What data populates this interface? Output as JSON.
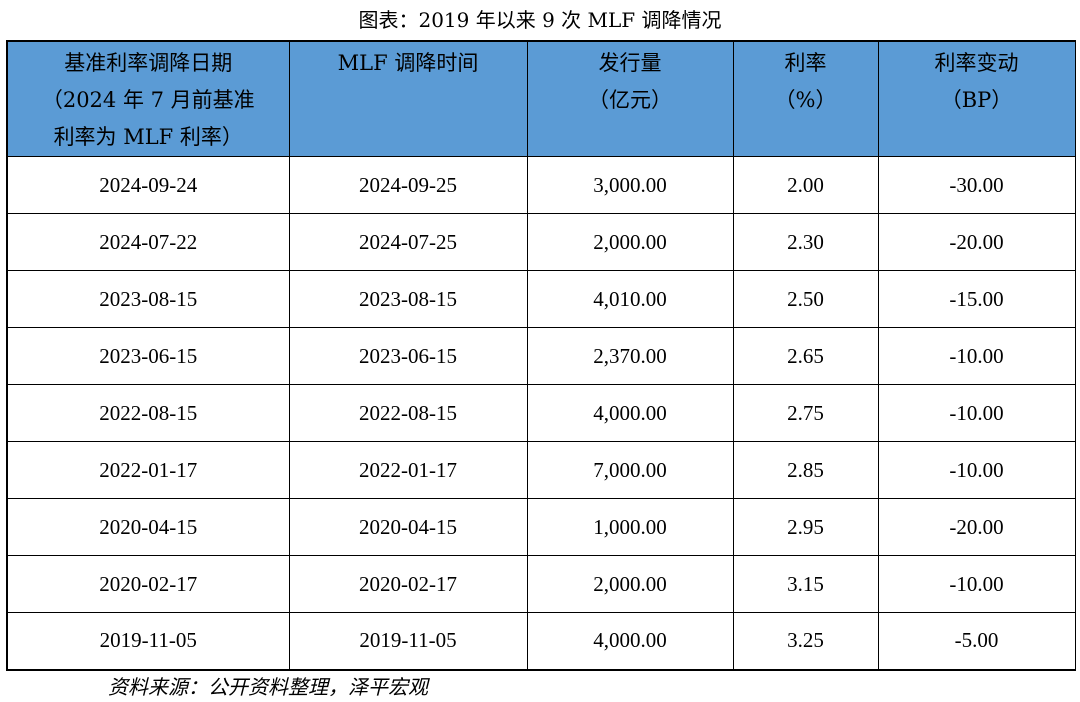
{
  "caption": "图表：2019 年以来 9 次 MLF 调降情况",
  "headers": [
    [
      "基准利率调降日期",
      "（2024 年 7 月前基准",
      "利率为 MLF 利率）"
    ],
    [
      "MLF 调降时间"
    ],
    [
      "发行量",
      "（亿元）"
    ],
    [
      "利率",
      "（%）"
    ],
    [
      "利率变动",
      "（BP）"
    ]
  ],
  "rows": [
    [
      "2024-09-24",
      "2024-09-25",
      "3,000.00",
      "2.00",
      "-30.00"
    ],
    [
      "2024-07-22",
      "2024-07-25",
      "2,000.00",
      "2.30",
      "-20.00"
    ],
    [
      "2023-08-15",
      "2023-08-15",
      "4,010.00",
      "2.50",
      "-15.00"
    ],
    [
      "2023-06-15",
      "2023-06-15",
      "2,370.00",
      "2.65",
      "-10.00"
    ],
    [
      "2022-08-15",
      "2022-08-15",
      "4,000.00",
      "2.75",
      "-10.00"
    ],
    [
      "2022-01-17",
      "2022-01-17",
      "7,000.00",
      "2.85",
      "-10.00"
    ],
    [
      "2020-04-15",
      "2020-04-15",
      "1,000.00",
      "2.95",
      "-20.00"
    ],
    [
      "2020-02-17",
      "2020-02-17",
      "2,000.00",
      "3.15",
      "-10.00"
    ],
    [
      "2019-11-05",
      "2019-11-05",
      "4,000.00",
      "3.25",
      "-5.00"
    ]
  ],
  "source": "资料来源：公开资料整理，泽平宏观",
  "colors": {
    "header_bg": "#5b9bd5",
    "border": "#000000"
  },
  "chart_data": {
    "type": "table",
    "columns": [
      "基准利率调降日期（2024 年 7 月前基准利率为 MLF 利率）",
      "MLF 调降时间",
      "发行量（亿元）",
      "利率（%）",
      "利率变动（BP）"
    ],
    "rows": [
      [
        "2024-09-24",
        "2024-09-25",
        3000.0,
        2.0,
        -30.0
      ],
      [
        "2024-07-22",
        "2024-07-25",
        2000.0,
        2.3,
        -20.0
      ],
      [
        "2023-08-15",
        "2023-08-15",
        4010.0,
        2.5,
        -15.0
      ],
      [
        "2023-06-15",
        "2023-06-15",
        2370.0,
        2.65,
        -10.0
      ],
      [
        "2022-08-15",
        "2022-08-15",
        4000.0,
        2.75,
        -10.0
      ],
      [
        "2022-01-17",
        "2022-01-17",
        7000.0,
        2.85,
        -10.0
      ],
      [
        "2020-04-15",
        "2020-04-15",
        1000.0,
        2.95,
        -20.0
      ],
      [
        "2020-02-17",
        "2020-02-17",
        2000.0,
        3.15,
        -10.0
      ],
      [
        "2019-11-05",
        "2019-11-05",
        4000.0,
        3.25,
        -5.0
      ]
    ]
  }
}
